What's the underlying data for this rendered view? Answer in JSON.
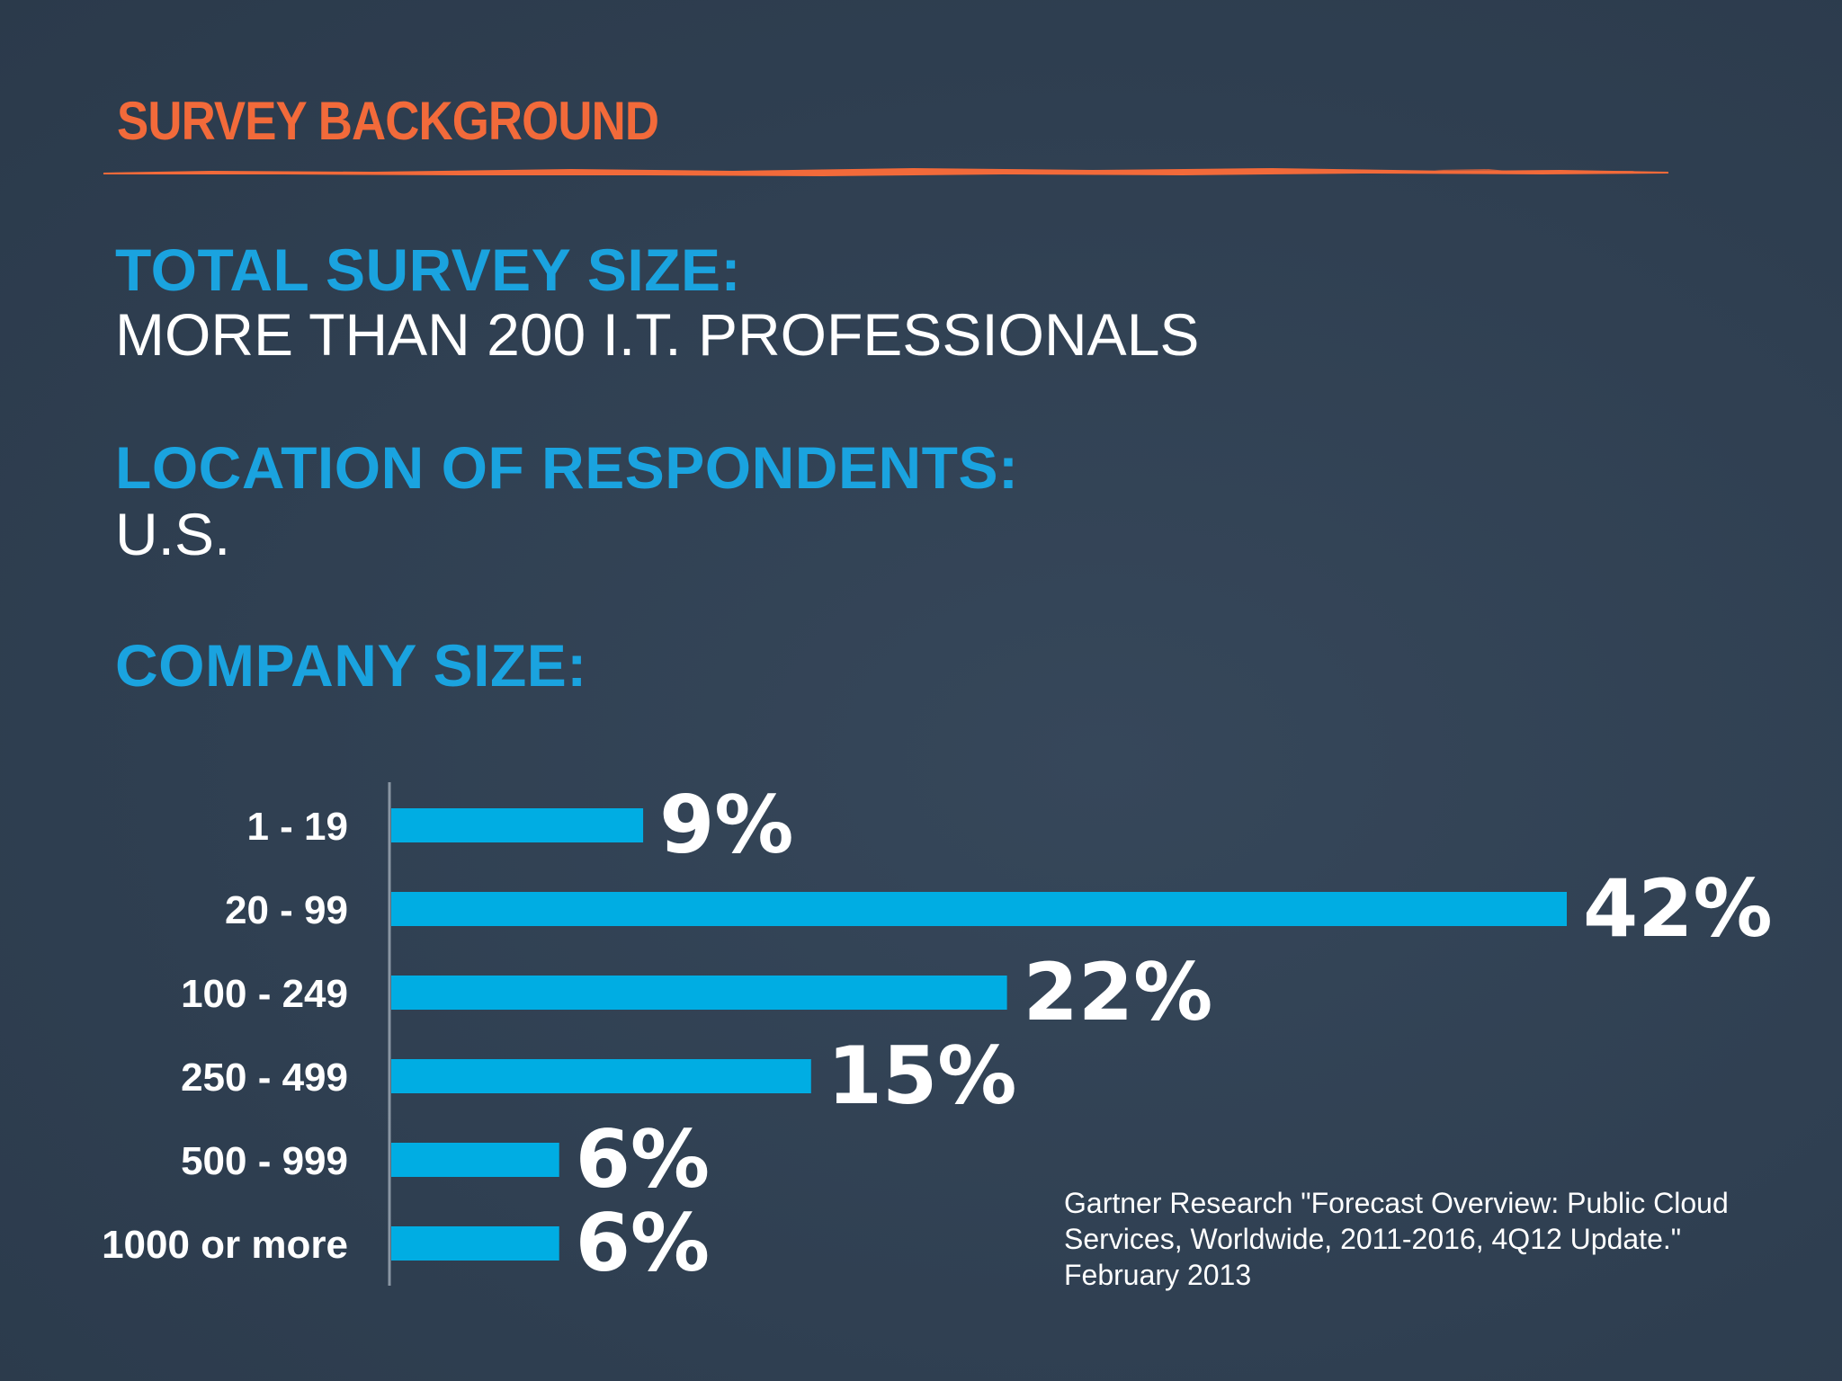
{
  "slide": {
    "title": "SURVEY BACKGROUND",
    "sections": [
      {
        "label": "TOTAL SURVEY SIZE:",
        "value": "MORE THAN 200 I.T. PROFESSIONALS"
      },
      {
        "label": "LOCATION OF RESPONDENTS:",
        "value": "U.S."
      },
      {
        "label": "COMPANY SIZE:",
        "value": ""
      }
    ],
    "source_lines": [
      "Gartner Research \"Forecast Overview: Public Cloud",
      "Services, Worldwide, 2011-2016, 4Q12 Update.\"",
      "February 2013"
    ]
  },
  "colors": {
    "background": "#2f3f51",
    "title": "#f26a3a",
    "label": "#1aa3df",
    "bar": "#00ade3",
    "text": "#ffffff"
  },
  "chart_data": {
    "type": "bar",
    "orientation": "horizontal",
    "categories": [
      "1 - 19",
      "20 - 99",
      "100 - 249",
      "250 - 499",
      "500 - 999",
      "1000 or more"
    ],
    "values": [
      9,
      42,
      22,
      15,
      6,
      6
    ],
    "value_labels": [
      "9%",
      "42%",
      "22%",
      "15%",
      "6%",
      "6%"
    ],
    "unit": "%",
    "xlim": [
      0,
      42
    ],
    "grid": false,
    "legend": "none"
  }
}
